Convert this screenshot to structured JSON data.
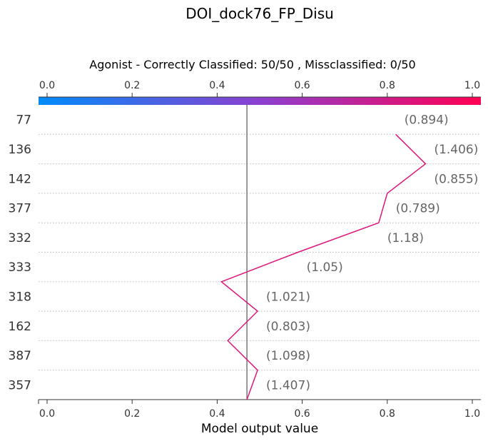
{
  "chart_data": {
    "type": "line",
    "title": "DOI_dock76_FP_Disu",
    "subtitle": "Agonist - Correctly Classified: 50/50 , Missclassified: 0/50",
    "xlabel": "Model output value",
    "xlim": [
      0.0,
      1.0
    ],
    "xticks": [
      "0.0",
      "0.2",
      "0.4",
      "0.6",
      "0.8",
      "1.0"
    ],
    "base_value": 0.47,
    "features": [
      "77",
      "136",
      "142",
      "377",
      "332",
      "333",
      "318",
      "162",
      "387",
      "357"
    ],
    "feature_values": [
      "(0.894)",
      "(1.406)",
      "(0.855)",
      "(0.789)",
      "(1.18)",
      "(1.05)",
      "(1.021)",
      "(0.803)",
      "(1.098)",
      "(1.407)"
    ],
    "series": [
      {
        "x": [
          0.47,
          0.495,
          0.425,
          0.495,
          0.41,
          0.59,
          0.78,
          0.8,
          0.89,
          0.82
        ],
        "y": [
          "357",
          "387",
          "162",
          "318",
          "333",
          "332",
          "377",
          "142",
          "136",
          "77"
        ]
      }
    ],
    "grid": "dotted-horizontal",
    "colors": {
      "colorbar_low": "#008bfa",
      "colorbar_mid": "#8c3fd0",
      "colorbar_high": "#ff0052",
      "line": "#e0167a",
      "base_line": "#808080"
    }
  }
}
